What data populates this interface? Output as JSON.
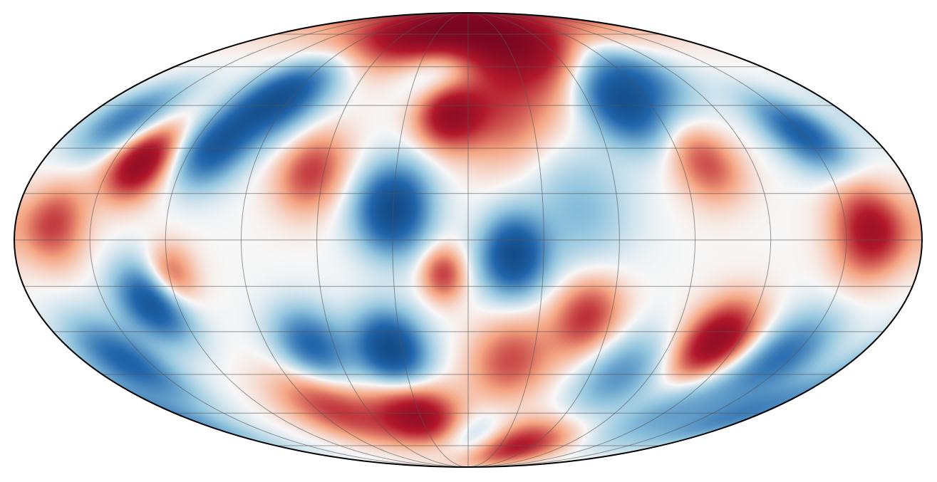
{
  "map": {
    "projection": "mollweide",
    "colormap": "RdBu_r",
    "colors": {
      "deep_red": "#67001f",
      "red": "#b2182b",
      "light_red": "#f4a582",
      "white": "#f7f7f7",
      "light_blue": "#92c5de",
      "blue": "#2166ac",
      "deep_blue": "#053061",
      "graticule": "#555555",
      "outline": "#000000"
    },
    "graticule": {
      "meridian_step_deg": 30,
      "parallel_step_deg": 15
    },
    "features": [
      {
        "lon": 0,
        "lat": 78,
        "amp": 0.7,
        "sigma": 14
      },
      {
        "lon": -50,
        "lat": 75,
        "amp": 0.55,
        "sigma": 10
      },
      {
        "lon": 45,
        "lat": 72,
        "amp": 0.5,
        "sigma": 12
      },
      {
        "lon": -15,
        "lat": 58,
        "amp": -0.45,
        "sigma": 9
      },
      {
        "lon": 30,
        "lat": 60,
        "amp": 0.35,
        "sigma": 14
      },
      {
        "lon": -9,
        "lat": 42,
        "amp": 0.85,
        "sigma": 8
      },
      {
        "lon": 15,
        "lat": 40,
        "amp": 0.35,
        "sigma": 12
      },
      {
        "lon": -95,
        "lat": 48,
        "amp": -0.9,
        "sigma": 10
      },
      {
        "lon": -110,
        "lat": 30,
        "amp": -0.75,
        "sigma": 9
      },
      {
        "lon": -138,
        "lat": 25,
        "amp": 0.95,
        "sigma": 8
      },
      {
        "lon": -160,
        "lat": 40,
        "amp": -0.55,
        "sigma": 9
      },
      {
        "lon": -165,
        "lat": 5,
        "amp": 0.55,
        "sigma": 9
      },
      {
        "lon": -65,
        "lat": 22,
        "amp": 0.55,
        "sigma": 9
      },
      {
        "lon": -30,
        "lat": 10,
        "amp": -1.0,
        "sigma": 10
      },
      {
        "lon": 18,
        "lat": -5,
        "amp": -0.95,
        "sigma": 9
      },
      {
        "lon": -10,
        "lat": -11,
        "amp": 0.55,
        "sigma": 6
      },
      {
        "lon": 45,
        "lat": 10,
        "amp": -0.3,
        "sigma": 14
      },
      {
        "lon": 75,
        "lat": 45,
        "amp": -0.85,
        "sigma": 10
      },
      {
        "lon": 95,
        "lat": 58,
        "amp": -0.6,
        "sigma": 10
      },
      {
        "lon": 150,
        "lat": 35,
        "amp": -0.75,
        "sigma": 9
      },
      {
        "lon": 160,
        "lat": 3,
        "amp": 0.8,
        "sigma": 10
      },
      {
        "lon": 100,
        "lat": 25,
        "amp": 0.5,
        "sigma": 9
      },
      {
        "lon": 145,
        "lat": -38,
        "amp": -0.6,
        "sigma": 10
      },
      {
        "lon": 110,
        "lat": -33,
        "amp": 0.95,
        "sigma": 9
      },
      {
        "lon": 75,
        "lat": -45,
        "amp": -0.45,
        "sigma": 10
      },
      {
        "lon": 50,
        "lat": -25,
        "amp": 0.6,
        "sigma": 9
      },
      {
        "lon": 20,
        "lat": -40,
        "amp": 0.5,
        "sigma": 10
      },
      {
        "lon": -35,
        "lat": -36,
        "amp": -1.0,
        "sigma": 9
      },
      {
        "lon": -70,
        "lat": -35,
        "amp": -0.7,
        "sigma": 9
      },
      {
        "lon": -130,
        "lat": -20,
        "amp": -0.9,
        "sigma": 9
      },
      {
        "lon": -120,
        "lat": -12,
        "amp": 0.6,
        "sigma": 7
      },
      {
        "lon": -160,
        "lat": -40,
        "amp": -0.7,
        "sigma": 10
      },
      {
        "lon": -30,
        "lat": -62,
        "amp": 0.95,
        "sigma": 9
      },
      {
        "lon": -80,
        "lat": -58,
        "amp": 0.55,
        "sigma": 10
      },
      {
        "lon": 5,
        "lat": -72,
        "amp": -0.6,
        "sigma": 8
      },
      {
        "lon": 40,
        "lat": -75,
        "amp": 0.9,
        "sigma": 8
      },
      {
        "lon": 170,
        "lat": -60,
        "amp": -0.5,
        "sigma": 10
      },
      {
        "lon": 120,
        "lat": -60,
        "amp": -0.35,
        "sigma": 10
      }
    ]
  }
}
